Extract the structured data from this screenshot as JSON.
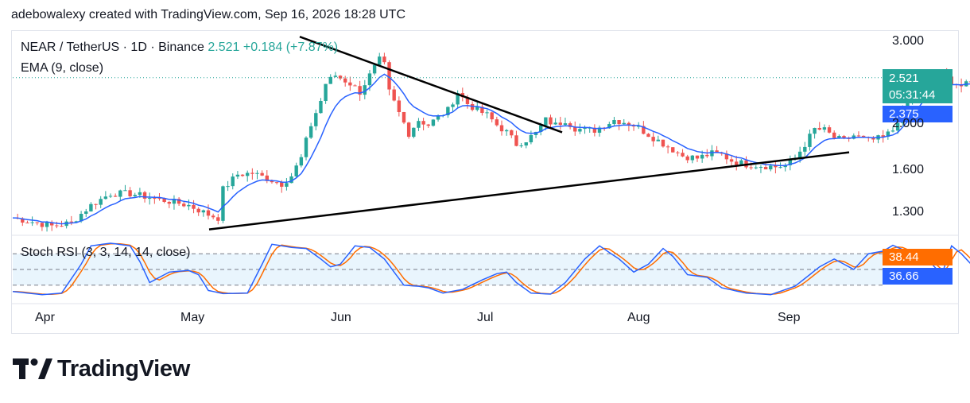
{
  "header": {
    "credit": "adebowalexy created with TradingView.com, Sep 16, 2026 18:28 UTC"
  },
  "legend": {
    "symbol": "NEAR / TetherUS · 1D · Binance",
    "price": "2.521",
    "change": "+0.184 (+7.87%)",
    "ema": "EMA (9, close)",
    "stoch": "Stoch RSI (3, 3, 14, 14, close)"
  },
  "price_tag": {
    "price": "2.521",
    "countdown": "05:31:44"
  },
  "ema_tag": "2.375",
  "stoch_k_tag": "38.44",
  "stoch_d_tag": "36.66",
  "brand": {
    "wordmark": "TradingView"
  },
  "colors": {
    "up": "#26a69a",
    "down": "#ef5350",
    "ema": "#2962ff",
    "stoch_k": "#2962ff",
    "stoch_d": "#ff6d00",
    "trendline": "#000000",
    "band": "#e3f2fd"
  },
  "chart_data": {
    "type": "candlestick",
    "symbol": "NEAR/USDT",
    "interval": "1D",
    "y_axis_ticks": [
      "3.000",
      "2.000",
      "1.600",
      "1.300"
    ],
    "y_axis_scale": "log",
    "x_axis_ticks": [
      "Apr",
      "May",
      "Jun",
      "Jul",
      "Aug",
      "Sep"
    ],
    "last_price": 2.521,
    "ema_9_last": 2.375,
    "key_closes": [
      {
        "label": "Apr",
        "close": 1.25
      },
      {
        "label": "May",
        "close": 1.26
      },
      {
        "label": "Jun",
        "close": 2.6
      },
      {
        "label": "Jul",
        "close": 1.95
      },
      {
        "label": "Aug",
        "close": 1.6
      },
      {
        "label": "Sep",
        "close": 2.3
      }
    ],
    "trendlines": [
      {
        "name": "descending resistance",
        "from": {
          "price": 3.08
        },
        "to": {
          "price": 1.93
        }
      },
      {
        "name": "ascending support",
        "from": {
          "price": 1.2
        },
        "to": {
          "price": 1.75
        }
      }
    ],
    "stoch_rsi": {
      "k_last": 38.44,
      "d_last": 36.66,
      "band": [
        20,
        80
      ]
    }
  }
}
